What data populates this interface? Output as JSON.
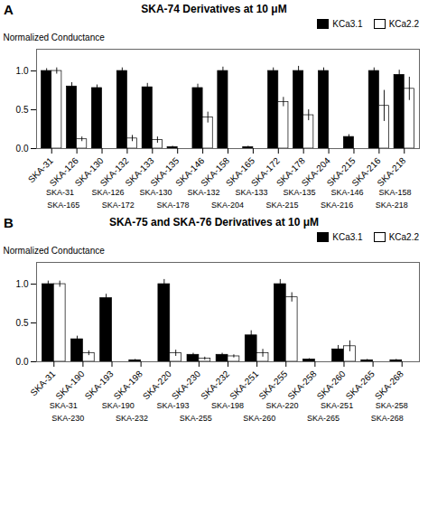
{
  "chart_data": [
    {
      "type": "bar",
      "panel_label": "A",
      "title": "SKA-74 Derivatives at 10 μM",
      "ylabel": "Normalized Conductance",
      "categories": [
        "SKA-31",
        "SKA-126",
        "SKA-130",
        "SKA-132",
        "SKA-133",
        "SKA-135",
        "SKA-146",
        "SKA-158",
        "SKA-165",
        "SKA-172",
        "SKA-178",
        "SKA-204",
        "SKA-215",
        "SKA-216",
        "SKA-218"
      ],
      "series": [
        {
          "name": "KCa3.1",
          "color": "#000000",
          "values": [
            1.0,
            0.8,
            0.78,
            1.0,
            0.79,
            0.02,
            0.78,
            1.0,
            0.02,
            1.0,
            1.0,
            1.0,
            0.15,
            1.0,
            0.95
          ],
          "errors": [
            0.03,
            0.05,
            0.04,
            0.04,
            0.05,
            0.01,
            0.05,
            0.05,
            0.01,
            0.04,
            0.06,
            0.04,
            0.03,
            0.04,
            0.06
          ]
        },
        {
          "name": "KCa2.2",
          "color": "#ffffff",
          "values": [
            1.0,
            0.12,
            0.0,
            0.13,
            0.11,
            0.0,
            0.4,
            0.0,
            0.0,
            0.6,
            0.43,
            0.0,
            0.0,
            0.55,
            0.77
          ],
          "errors": [
            0.04,
            0.03,
            0.0,
            0.04,
            0.04,
            0.0,
            0.07,
            0.0,
            0.0,
            0.06,
            0.07,
            0.0,
            0.0,
            0.2,
            0.15
          ]
        }
      ],
      "ylim": [
        0,
        1.28
      ],
      "yticks": [
        {
          "value": 0,
          "label": "0.0"
        },
        {
          "value": 0.5,
          "label": "0.5"
        },
        {
          "value": 1,
          "label": "1.0"
        }
      ],
      "legend": "upper right",
      "annotation_rows": [
        [
          "SKA-31",
          "SKA-126",
          "SKA-130",
          "SKA-132",
          "SKA-133",
          "SKA-135",
          "SKA-146",
          "SKA-158"
        ],
        [
          "SKA-165",
          "SKA-172",
          "SKA-178",
          "SKA-204",
          "SKA-215",
          "SKA-216",
          "SKA-218"
        ]
      ]
    },
    {
      "type": "bar",
      "panel_label": "B",
      "title": "SKA-75 and SKA-76 Derivatives at 10 μM",
      "ylabel": "Normalized Conductance",
      "categories": [
        "SKA-31",
        "SKA-190",
        "SKA-193",
        "SKA-198",
        "SKA-220",
        "SKA-230",
        "SKA-232",
        "SKA-251",
        "SKA-255",
        "SKA-258",
        "SKA-260",
        "SKA-265",
        "SKA-268"
      ],
      "series": [
        {
          "name": "KCa3.1",
          "color": "#000000",
          "values": [
            1.0,
            0.29,
            0.82,
            0.02,
            1.0,
            0.09,
            0.09,
            0.34,
            1.0,
            0.03,
            0.16,
            0.02,
            0.02
          ],
          "errors": [
            0.04,
            0.04,
            0.05,
            0.01,
            0.06,
            0.02,
            0.02,
            0.06,
            0.06,
            0.01,
            0.05,
            0.01,
            0.01
          ]
        },
        {
          "name": "KCa2.2",
          "color": "#ffffff",
          "values": [
            1.0,
            0.11,
            0.0,
            0.0,
            0.11,
            0.04,
            0.07,
            0.11,
            0.83,
            0.0,
            0.2,
            0.0,
            0.0
          ],
          "errors": [
            0.04,
            0.03,
            0.0,
            0.0,
            0.04,
            0.02,
            0.02,
            0.05,
            0.06,
            0.0,
            0.07,
            0.0,
            0.0
          ]
        }
      ],
      "ylim": [
        0,
        1.28
      ],
      "yticks": [
        {
          "value": 0,
          "label": "0.0"
        },
        {
          "value": 0.5,
          "label": "0.5"
        },
        {
          "value": 1,
          "label": "1.0"
        }
      ],
      "legend": "upper right",
      "annotation_rows": [
        [
          "SKA-31",
          "SKA-190",
          "SKA-193",
          "SKA-198",
          "SKA-220",
          "SKA-251",
          "SKA-258"
        ],
        [
          "SKA-230",
          "SKA-232",
          "SKA-255",
          "SKA-260",
          "SKA-265",
          "SKA-268"
        ]
      ]
    }
  ]
}
